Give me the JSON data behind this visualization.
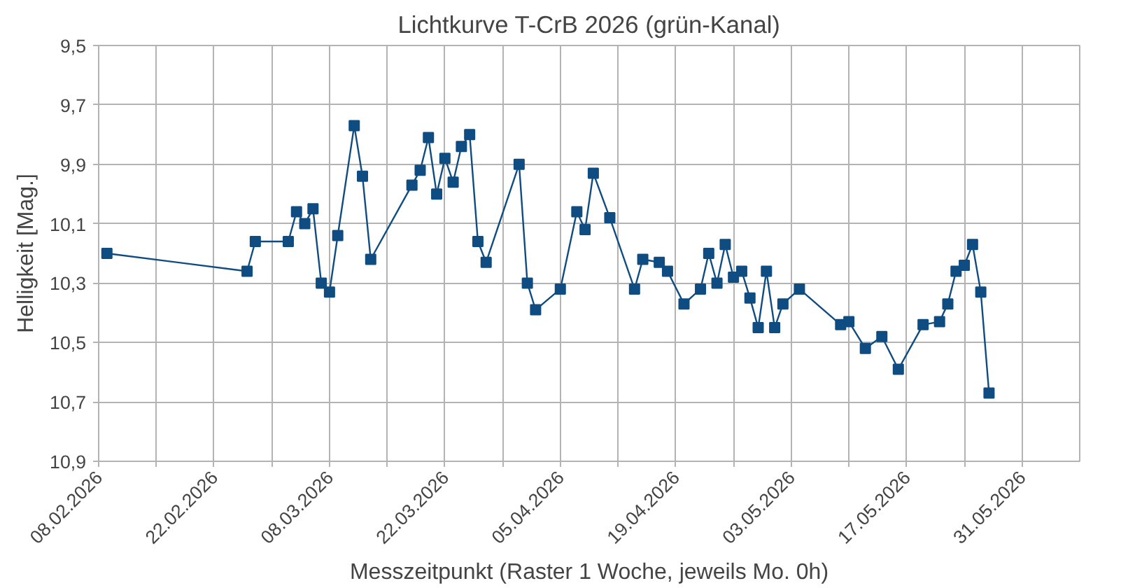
{
  "chart_data": {
    "type": "line",
    "title": "Lichtkurve T-CrB 2026 (grün-Kanal)",
    "xlabel": "Messzeitpunkt (Raster 1 Woche, jeweils Mo. 0h)",
    "ylabel": "Helligkeit [Mag.]",
    "x": [
      "2026-02-09",
      "2026-02-26",
      "2026-02-27",
      "2026-03-03",
      "2026-03-04",
      "2026-03-05",
      "2026-03-06",
      "2026-03-07",
      "2026-03-08",
      "2026-03-09",
      "2026-03-11",
      "2026-03-12",
      "2026-03-13",
      "2026-03-18",
      "2026-03-19",
      "2026-03-20",
      "2026-03-21",
      "2026-03-22",
      "2026-03-23",
      "2026-03-24",
      "2026-03-25",
      "2026-03-26",
      "2026-03-27",
      "2026-03-31",
      "2026-04-01",
      "2026-04-02",
      "2026-04-05",
      "2026-04-07",
      "2026-04-08",
      "2026-04-09",
      "2026-04-11",
      "2026-04-14",
      "2026-04-15",
      "2026-04-17",
      "2026-04-18",
      "2026-04-20",
      "2026-04-22",
      "2026-04-23",
      "2026-04-24",
      "2026-04-25",
      "2026-04-26",
      "2026-04-27",
      "2026-04-28",
      "2026-04-29",
      "2026-04-30",
      "2026-05-01",
      "2026-05-02",
      "2026-05-04",
      "2026-05-09",
      "2026-05-10",
      "2026-05-12",
      "2026-05-14",
      "2026-05-16",
      "2026-05-19",
      "2026-05-21",
      "2026-05-22",
      "2026-05-23",
      "2026-05-24",
      "2026-05-25",
      "2026-05-26",
      "2026-05-27"
    ],
    "series": [
      {
        "color": "#0f4c81",
        "values": [
          10.2,
          10.26,
          10.16,
          10.16,
          10.06,
          10.1,
          10.05,
          10.3,
          10.33,
          10.14,
          9.77,
          9.94,
          10.22,
          9.97,
          9.92,
          9.81,
          10.0,
          9.88,
          9.96,
          9.84,
          9.8,
          10.16,
          10.23,
          9.9,
          10.3,
          10.39,
          10.32,
          10.06,
          10.12,
          9.93,
          10.08,
          10.32,
          10.22,
          10.23,
          10.26,
          10.37,
          10.32,
          10.2,
          10.3,
          10.17,
          10.28,
          10.26,
          10.35,
          10.45,
          10.26,
          10.45,
          10.37,
          10.32,
          10.44,
          10.43,
          10.52,
          10.48,
          10.59,
          10.44,
          10.43,
          10.37,
          10.26,
          10.24,
          10.17,
          10.33,
          10.67
        ]
      }
    ],
    "ylim": [
      10.9,
      9.5
    ],
    "yticks": [
      {
        "value": 9.5,
        "label": "9,5"
      },
      {
        "value": 9.7,
        "label": "9,7"
      },
      {
        "value": 9.9,
        "label": "9,9"
      },
      {
        "value": 10.1,
        "label": "10,1"
      },
      {
        "value": 10.3,
        "label": "10,3"
      },
      {
        "value": 10.5,
        "label": "10,5"
      },
      {
        "value": 10.7,
        "label": "10,7"
      },
      {
        "value": 10.9,
        "label": "10,9"
      }
    ],
    "xlim": [
      "2026-02-08",
      "2026-06-07"
    ],
    "xticks": [
      {
        "value": "2026-02-08",
        "label": "08.02.2026"
      },
      {
        "value": "2026-02-15",
        "label": null
      },
      {
        "value": "2026-02-22",
        "label": "22.02.2026"
      },
      {
        "value": "2026-03-01",
        "label": null
      },
      {
        "value": "2026-03-08",
        "label": "08.03.2026"
      },
      {
        "value": "2026-03-15",
        "label": null
      },
      {
        "value": "2026-03-22",
        "label": "22.03.2026"
      },
      {
        "value": "2026-03-29",
        "label": null
      },
      {
        "value": "2026-04-05",
        "label": "05.04.2026"
      },
      {
        "value": "2026-04-12",
        "label": null
      },
      {
        "value": "2026-04-19",
        "label": "19.04.2026"
      },
      {
        "value": "2026-04-26",
        "label": null
      },
      {
        "value": "2026-05-03",
        "label": "03.05.2026"
      },
      {
        "value": "2026-05-10",
        "label": null
      },
      {
        "value": "2026-05-17",
        "label": "17.05.2026"
      },
      {
        "value": "2026-05-24",
        "label": null
      },
      {
        "value": "2026-05-31",
        "label": "31.05.2026"
      }
    ],
    "grid": true,
    "marker": "square",
    "line_style": "solid"
  }
}
